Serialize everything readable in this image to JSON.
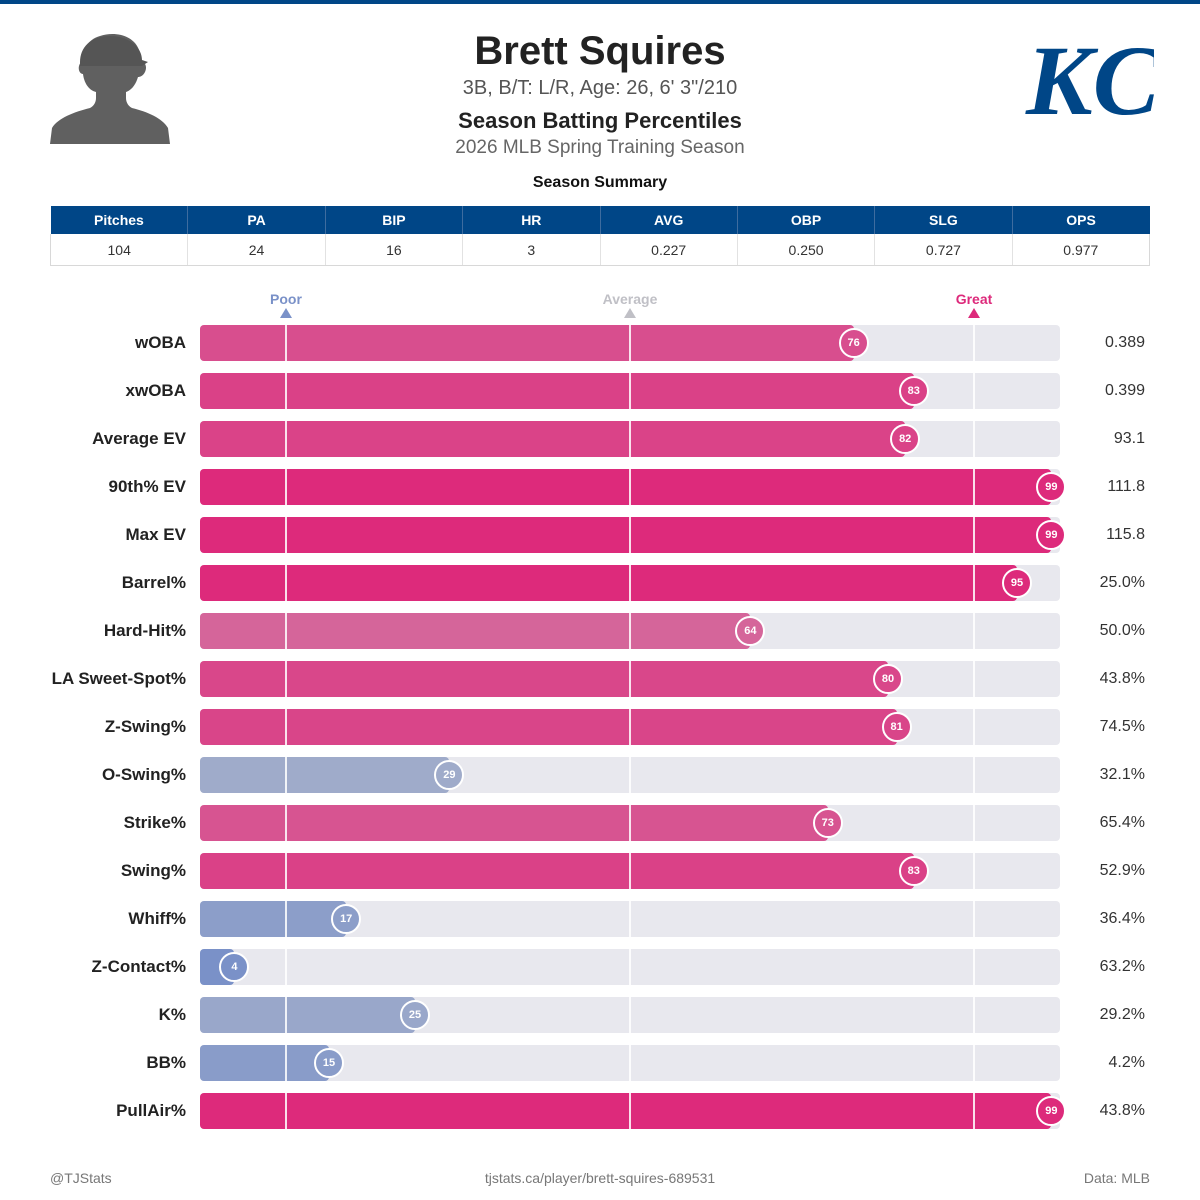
{
  "header": {
    "player_name": "Brett Squires",
    "player_info": "3B, B/T: L/R, Age: 26, 6' 3\"/210",
    "section_title": "Season Batting Percentiles",
    "season_label": "2026 MLB Spring Training Season",
    "logo_text": "KC"
  },
  "summary": {
    "title": "Season Summary",
    "columns": [
      "Pitches",
      "PA",
      "BIP",
      "HR",
      "AVG",
      "OBP",
      "SLG",
      "OPS"
    ],
    "values": [
      "104",
      "24",
      "16",
      "3",
      "0.227",
      "0.250",
      "0.727",
      "0.977"
    ]
  },
  "scale": {
    "poor": "Poor",
    "average": "Average",
    "great": "Great",
    "poor_pct": 10,
    "average_pct": 50,
    "great_pct": 90
  },
  "colors": {
    "brand": "#004687",
    "poor": "#7a91c8",
    "average": "#c7c7cd",
    "great": "#dd2a7b",
    "track": "#e8e8ee"
  },
  "chart_data": {
    "type": "bar",
    "orientation": "horizontal",
    "title": "Season Batting Percentiles",
    "categories": [
      "wOBA",
      "xwOBA",
      "Average EV",
      "90th% EV",
      "Max EV",
      "Barrel%",
      "Hard-Hit%",
      "LA Sweet-Spot%",
      "Z-Swing%",
      "O-Swing%",
      "Strike%",
      "Swing%",
      "Whiff%",
      "Z-Contact%",
      "K%",
      "BB%",
      "PullAir%"
    ],
    "percentiles": [
      76,
      83,
      82,
      99,
      99,
      95,
      64,
      80,
      81,
      29,
      73,
      83,
      17,
      4,
      25,
      15,
      99
    ],
    "values": [
      "0.389",
      "0.399",
      "93.1",
      "111.8",
      "115.8",
      "25.0%",
      "50.0%",
      "43.8%",
      "74.5%",
      "32.1%",
      "65.4%",
      "52.9%",
      "36.4%",
      "63.2%",
      "29.2%",
      "4.2%",
      "43.8%"
    ],
    "xlim": [
      0,
      100
    ]
  },
  "footer": {
    "handle": "@TJStats",
    "url": "tjstats.ca/player/brett-squires-689531",
    "source": "Data: MLB"
  }
}
